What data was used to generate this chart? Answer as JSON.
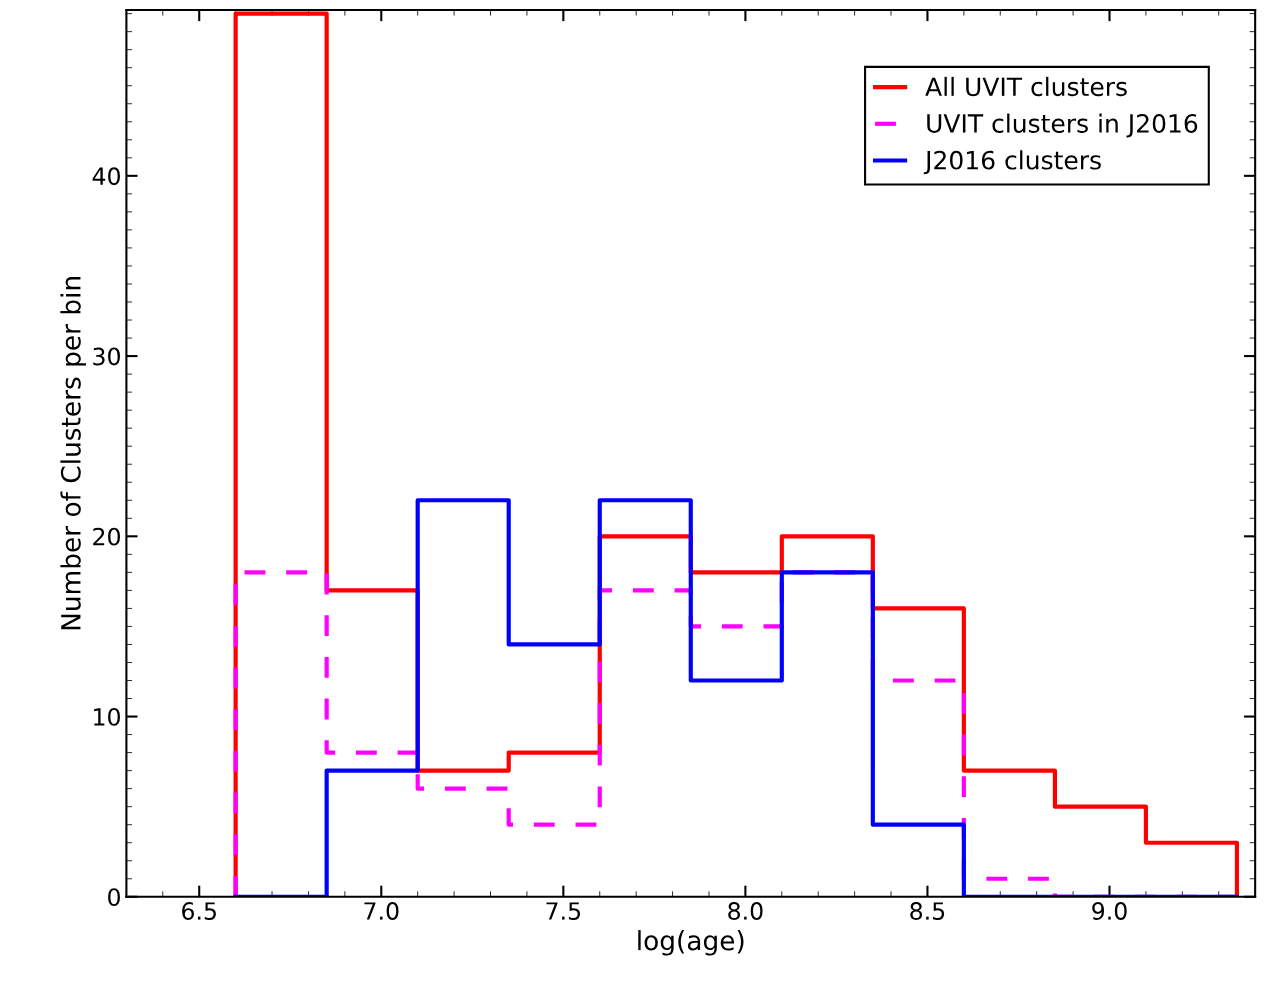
{
  "chart_data": {
    "type": "histogram",
    "xlabel": "log(age)",
    "ylabel": "Number of Clusters per bin",
    "bins": [
      6.6,
      6.85,
      7.1,
      7.35,
      7.6,
      7.85,
      8.1,
      8.35,
      8.6,
      8.85,
      9.1,
      9.35
    ],
    "series": [
      {
        "name": "All UVIT clusters",
        "color": "#ff0000",
        "line_style": "solid",
        "values": [
          49,
          17,
          7,
          8,
          20,
          18,
          20,
          16,
          7,
          5,
          3
        ]
      },
      {
        "name": "UVIT clusters in J2016",
        "color": "#ff00ff",
        "line_style": "dashed",
        "values": [
          18,
          8,
          6,
          4,
          17,
          15,
          18,
          12,
          1,
          0,
          0
        ]
      },
      {
        "name": "J2016 clusters",
        "color": "#0000ff",
        "line_style": "solid",
        "values": [
          0,
          7,
          22,
          14,
          22,
          12,
          18,
          4,
          0,
          0,
          0
        ]
      }
    ],
    "xlim": [
      6.3,
      9.4
    ],
    "xticks": [
      6.5,
      {
        "value": 7,
        "label": "7.0"
      },
      7.5,
      {
        "value": 8,
        "label": "8.0"
      },
      8.5,
      {
        "value": 9,
        "label": "9.0"
      }
    ],
    "ylim": [
      0,
      49.2
    ],
    "yticks": [
      0,
      10,
      20,
      30,
      40
    ],
    "grid": false,
    "legend": "top right"
  }
}
